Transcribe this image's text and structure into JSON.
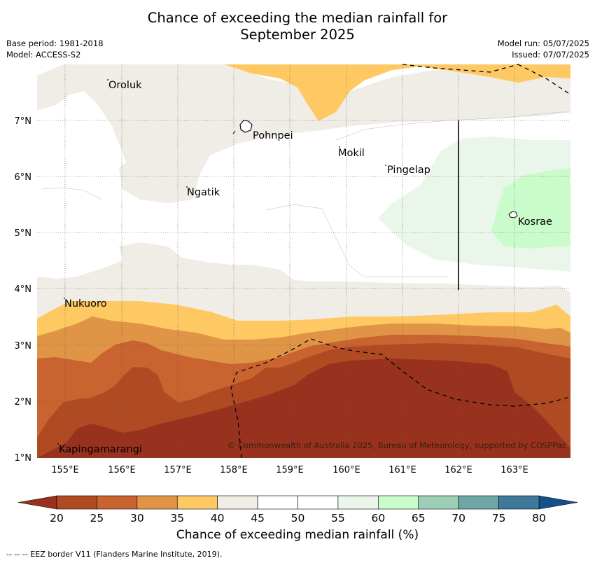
{
  "title_line1": "Chance of exceeding the median rainfall for",
  "title_line2": "September 2025",
  "base_period": "Base period: 1981-2018",
  "model": "Model: ACCESS-S2",
  "model_run": "Model run: 05/07/2025",
  "issued": "Issued: 07/07/2025",
  "copyright": "© Commonwealth of Australia 2025, Bureau of Meteorology, supported by COSPPac",
  "footer": "--  --  -- EEZ border V11 (Flanders Marine Institute, 2019).",
  "axes": {
    "lon_ticks": [
      "155°E",
      "156°E",
      "157°E",
      "158°E",
      "159°E",
      "160°E",
      "161°E",
      "162°E",
      "163°E"
    ],
    "lat_ticks": [
      "7°N",
      "6°N",
      "5°N",
      "4°N",
      "3°N",
      "2°N",
      "1°N"
    ]
  },
  "places": [
    {
      "name": "Oroluk"
    },
    {
      "name": "Pohnpei"
    },
    {
      "name": "Mokil"
    },
    {
      "name": "Pingelap"
    },
    {
      "name": "Ngatik"
    },
    {
      "name": "Kosrae"
    },
    {
      "name": "Nukuoro"
    },
    {
      "name": "Kapingamarangi"
    }
  ],
  "colorbar": {
    "label": "Chance of exceeding median rainfall (%)",
    "ticks": [
      "20",
      "25",
      "30",
      "35",
      "40",
      "45",
      "50",
      "55",
      "60",
      "65",
      "70",
      "75",
      "80"
    ],
    "colors": [
      "#b04a22",
      "#c96330",
      "#e09546",
      "#fec962",
      "#f0ece6",
      "#ffffff",
      "#ffffff",
      "#eaf6ea",
      "#c9fcca",
      "#9ccfb6",
      "#6ea5a5",
      "#3f7898"
    ],
    "under_color": "#98321e",
    "over_color": "#155088"
  }
}
